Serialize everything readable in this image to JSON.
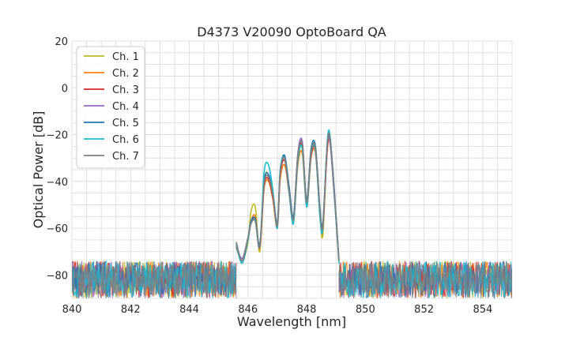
{
  "chart_data": {
    "type": "line",
    "title": "D4373 V20090 OptoBoard QA",
    "xlabel": "Wavelength [nm]",
    "ylabel": "Optical Power [dB]",
    "xlim": [
      840,
      855
    ],
    "ylim": [
      -90,
      20
    ],
    "xticks": [
      840,
      842,
      844,
      846,
      848,
      850,
      852,
      854
    ],
    "yticks": [
      20,
      0,
      -20,
      -40,
      -60,
      -80
    ],
    "ytick_labels": [
      "20",
      "0",
      "−20",
      "−40",
      "−60",
      "−80"
    ],
    "grid": true,
    "legend_position": "top-left",
    "noise_floor": {
      "x_range": [
        840,
        855
      ],
      "level_db": -74,
      "spread_db": 16
    },
    "series": [
      {
        "name": "Ch. 1",
        "color": "#bcbd22",
        "x": [
          845.6,
          845.8,
          846.0,
          846.1,
          846.25,
          846.4,
          846.55,
          846.7,
          846.85,
          847.0,
          847.1,
          847.25,
          847.4,
          847.55,
          847.7,
          847.85,
          848.0,
          848.15,
          848.3,
          848.45,
          848.55,
          848.7,
          848.8,
          848.95,
          849.1
        ],
        "y": [
          -68,
          -74,
          -66,
          -53,
          -51,
          -70,
          -40,
          -37,
          -46,
          -59,
          -36,
          -30,
          -44,
          -56,
          -31,
          -26,
          -50,
          -28,
          -26,
          -52,
          -63,
          -25,
          -23,
          -46,
          -74
        ]
      },
      {
        "name": "Ch. 2",
        "color": "#ff7f0e",
        "x": [
          845.6,
          845.8,
          846.0,
          846.1,
          846.25,
          846.4,
          846.55,
          846.7,
          846.85,
          847.0,
          847.1,
          847.25,
          847.4,
          847.55,
          847.7,
          847.85,
          848.0,
          848.15,
          848.3,
          848.45,
          848.55,
          848.7,
          848.8,
          848.95,
          849.1
        ],
        "y": [
          -67,
          -75,
          -65,
          -57,
          -55,
          -69,
          -43,
          -40,
          -48,
          -60,
          -39,
          -33,
          -45,
          -57,
          -33,
          -28,
          -51,
          -30,
          -28,
          -54,
          -61,
          -27,
          -24,
          -47,
          -75
        ]
      },
      {
        "name": "Ch. 3",
        "color": "#d62728",
        "x": [
          845.6,
          845.8,
          846.0,
          846.1,
          846.25,
          846.4,
          846.55,
          846.7,
          846.85,
          847.0,
          847.1,
          847.25,
          847.4,
          847.55,
          847.7,
          847.85,
          848.0,
          848.15,
          848.3,
          848.45,
          848.55,
          848.7,
          848.8,
          848.95,
          849.1
        ],
        "y": [
          -68,
          -74,
          -65,
          -58,
          -56,
          -68,
          -42,
          -39,
          -47,
          -59,
          -37,
          -31,
          -44,
          -56,
          -30,
          -25,
          -50,
          -29,
          -27,
          -53,
          -60,
          -26,
          -23,
          -46,
          -74
        ]
      },
      {
        "name": "Ch. 4",
        "color": "#9467bd",
        "x": [
          845.6,
          845.8,
          846.0,
          846.1,
          846.25,
          846.4,
          846.55,
          846.7,
          846.85,
          847.0,
          847.1,
          847.25,
          847.4,
          847.55,
          847.7,
          847.85,
          848.0,
          848.15,
          848.3,
          848.45,
          848.55,
          848.7,
          848.8,
          848.95,
          849.1
        ],
        "y": [
          -67,
          -73,
          -64,
          -58,
          -57,
          -67,
          -41,
          -38,
          -46,
          -58,
          -36,
          -29,
          -43,
          -55,
          -28,
          -23,
          -49,
          -27,
          -26,
          -52,
          -59,
          -25,
          -24,
          -48,
          -73
        ]
      },
      {
        "name": "Ch. 5",
        "color": "#1f77b4",
        "x": [
          845.6,
          845.8,
          846.0,
          846.1,
          846.25,
          846.4,
          846.55,
          846.7,
          846.85,
          847.0,
          847.1,
          847.25,
          847.4,
          847.55,
          847.7,
          847.85,
          848.0,
          848.15,
          848.3,
          848.45,
          848.55,
          848.7,
          848.8,
          848.95,
          849.1
        ],
        "y": [
          -66,
          -74,
          -64,
          -57,
          -56,
          -67,
          -40,
          -37,
          -45,
          -58,
          -35,
          -29,
          -42,
          -55,
          -29,
          -24,
          -48,
          -26,
          -25,
          -51,
          -58,
          -24,
          -22,
          -45,
          -74
        ]
      },
      {
        "name": "Ch. 6",
        "color": "#17becf",
        "x": [
          845.6,
          845.8,
          846.0,
          846.1,
          846.25,
          846.4,
          846.55,
          846.7,
          846.85,
          847.0,
          847.1,
          847.25,
          847.4,
          847.55,
          847.7,
          847.85,
          848.0,
          848.15,
          848.3,
          848.45,
          848.55,
          848.7,
          848.8,
          848.95,
          849.1
        ],
        "y": [
          -67,
          -75,
          -65,
          -58,
          -57,
          -68,
          -36,
          -33,
          -44,
          -60,
          -35,
          -30,
          -45,
          -58,
          -31,
          -26,
          -51,
          -28,
          -27,
          -55,
          -60,
          -23,
          -21,
          -47,
          -75
        ]
      },
      {
        "name": "Ch. 7",
        "color": "#7f7f7f",
        "x": [
          845.6,
          845.8,
          846.0,
          846.1,
          846.25,
          846.4,
          846.55,
          846.7,
          846.85,
          847.0,
          847.1,
          847.25,
          847.4,
          847.55,
          847.7,
          847.85,
          848.0,
          848.15,
          848.3,
          848.45,
          848.55,
          848.7,
          848.8,
          848.95,
          849.1
        ],
        "y": [
          -66,
          -74,
          -64,
          -58,
          -57,
          -68,
          -41,
          -38,
          -46,
          -59,
          -36,
          -30,
          -44,
          -56,
          -29,
          -24,
          -49,
          -27,
          -26,
          -52,
          -59,
          -24,
          -22,
          -46,
          -74
        ]
      }
    ]
  }
}
